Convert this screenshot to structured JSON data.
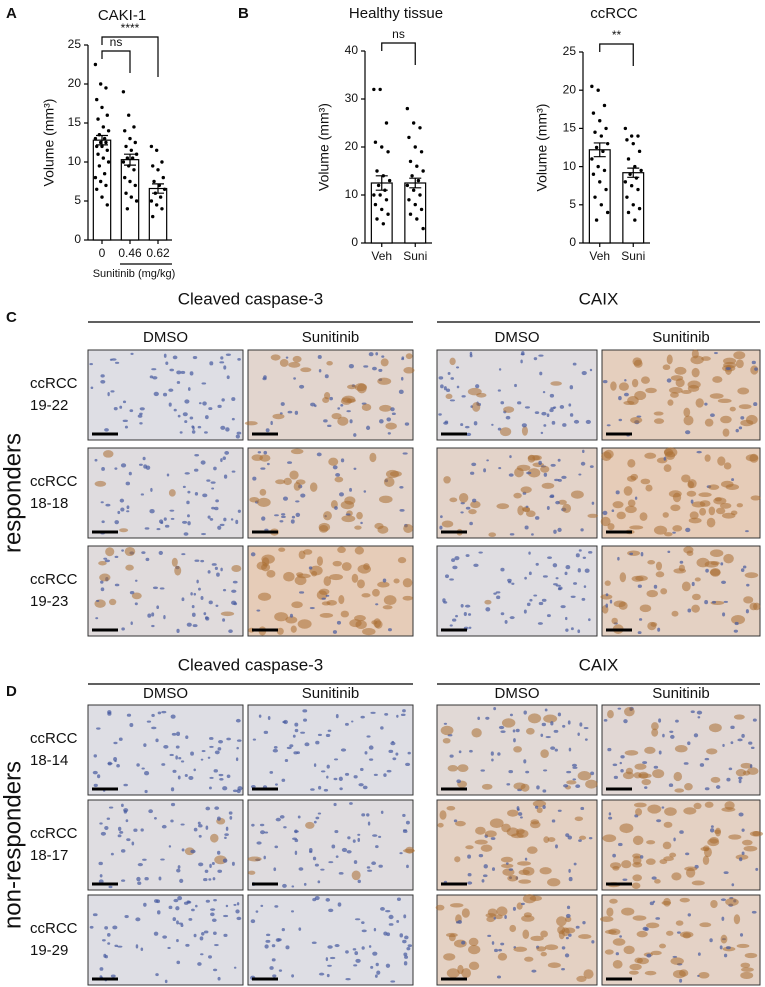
{
  "chart_data": [
    {
      "type": "bar",
      "panel": "A",
      "title": "CAKI-1",
      "ylabel": "Volume (mm³)",
      "xlabel": "Sunitinib (mg/kg)",
      "categories": [
        "0",
        "0.46",
        "0.62"
      ],
      "values": [
        12.8,
        10.3,
        6.6
      ],
      "errors": [
        0.6,
        0.7,
        0.6
      ],
      "points": [
        [
          22.5,
          20,
          19.5,
          18,
          17,
          16,
          15.5,
          14.5,
          14,
          13.5,
          13,
          13,
          12.5,
          12.5,
          12,
          12,
          11.5,
          11,
          10.5,
          10,
          9.5,
          8.5,
          8,
          7.5,
          7,
          6.5,
          5.5,
          4.5
        ],
        [
          19,
          16,
          14.5,
          14,
          13,
          12.5,
          12,
          11.5,
          11,
          10.5,
          10.5,
          10,
          9.5,
          9,
          8,
          7.5,
          7,
          6,
          5.5,
          5,
          4
        ],
        [
          12,
          11.5,
          10,
          9.5,
          9,
          8,
          7.5,
          7,
          6.5,
          6,
          5.5,
          5,
          4.5,
          4,
          3
        ]
      ],
      "annotations": [
        {
          "text": "ns",
          "between": [
            "0",
            "0.46"
          ]
        },
        {
          "text": "****",
          "between": [
            "0",
            "0.62"
          ]
        }
      ],
      "ylim": [
        0,
        25
      ],
      "yticks": [
        0,
        5,
        10,
        15,
        20,
        25
      ]
    },
    {
      "type": "bar",
      "panel": "B",
      "title": "Healthy tissue",
      "ylabel": "Volume (mm³)",
      "categories": [
        "Veh",
        "Suni"
      ],
      "values": [
        12.5,
        12.5
      ],
      "errors": [
        1.5,
        1.0
      ],
      "points": [
        [
          32,
          32,
          25,
          21,
          20,
          19,
          15,
          14,
          13,
          12,
          11,
          10,
          10,
          9,
          8,
          7,
          6,
          5,
          4
        ],
        [
          28,
          25,
          24,
          22,
          20,
          19,
          17,
          16,
          15,
          14,
          13,
          12,
          11,
          10,
          9,
          8,
          7,
          6,
          5,
          3
        ]
      ],
      "annotations": [
        {
          "text": "ns",
          "between": [
            "Veh",
            "Suni"
          ]
        }
      ],
      "ylim": [
        0,
        40
      ],
      "yticks": [
        0,
        10,
        20,
        30,
        40
      ]
    },
    {
      "type": "bar",
      "title": "ccRCC",
      "ylabel": "Volume (mm³)",
      "categories": [
        "Veh",
        "Suni"
      ],
      "values": [
        12.2,
        9.2
      ],
      "errors": [
        0.9,
        0.6
      ],
      "points": [
        [
          20.5,
          20,
          18,
          17,
          16,
          15,
          14.5,
          14,
          13,
          12.5,
          12,
          11,
          10,
          9.5,
          9,
          8,
          7,
          6,
          5,
          4,
          3
        ],
        [
          15,
          14,
          14,
          13.5,
          13,
          12,
          11,
          10,
          9.5,
          9,
          8.5,
          8,
          7.5,
          7,
          6,
          5,
          4.5,
          4,
          3
        ]
      ],
      "annotations": [
        {
          "text": "**",
          "between": [
            "Veh",
            "Suni"
          ]
        }
      ],
      "ylim": [
        0,
        25
      ],
      "yticks": [
        0,
        5,
        10,
        15,
        20,
        25
      ]
    }
  ],
  "sections": [
    {
      "panel": "C",
      "side_label": "responders",
      "groups": [
        "Cleaved caspase-3",
        "CAIX"
      ],
      "columns": [
        "DMSO",
        "Sunitinib",
        "DMSO",
        "Sunitinib"
      ],
      "rows": [
        [
          "ccRCC",
          "19-22"
        ],
        [
          "ccRCC",
          "18-18"
        ],
        [
          "ccRCC",
          "19-23"
        ]
      ]
    },
    {
      "panel": "D",
      "side_label": "non-responders",
      "groups": [
        "Cleaved caspase-3",
        "CAIX"
      ],
      "columns": [
        "DMSO",
        "Sunitinib",
        "DMSO",
        "Sunitinib"
      ],
      "rows": [
        [
          "ccRCC",
          "18-14"
        ],
        [
          "ccRCC",
          "18-17"
        ],
        [
          "ccRCC",
          "19-29"
        ]
      ]
    }
  ]
}
